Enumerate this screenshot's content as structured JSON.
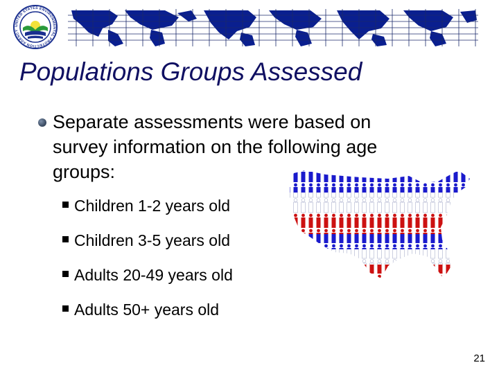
{
  "slide": {
    "title": "Populations Groups Assessed",
    "bullet": "Separate assessments were based on survey information on the following age groups:",
    "sub_items": [
      "Children 1-2 years old",
      "Children 3-5 years old",
      "Adults 20-49  years old",
      "Adults 50+ years old"
    ],
    "page_number": "21"
  },
  "colors": {
    "title": "#101062",
    "map_blue": "#0a1f8f",
    "figure_red": "#cc1111",
    "figure_blue": "#1a1acc"
  },
  "icons": {
    "logo": "epa-seal-icon",
    "banner": "world-map-grid-banner",
    "illustration": "us-map-people-figures"
  }
}
